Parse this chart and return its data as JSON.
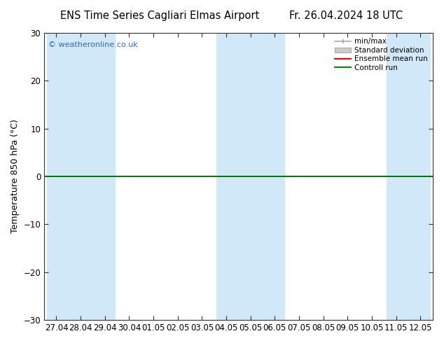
{
  "title_left": "ENS Time Series Cagliari Elmas Airport",
  "title_right": "Fr. 26.04.2024 18 UTC",
  "ylabel": "Temperature 850 hPa (°C)",
  "watermark": "© weatheronline.co.uk",
  "ylim": [
    -30,
    30
  ],
  "yticks": [
    -30,
    -20,
    -10,
    0,
    10,
    20,
    30
  ],
  "xtick_labels": [
    "27.04",
    "28.04",
    "29.04",
    "30.04",
    "01.05",
    "02.05",
    "03.05",
    "04.05",
    "05.05",
    "06.05",
    "07.05",
    "08.05",
    "09.05",
    "10.05",
    "11.05",
    "12.05"
  ],
  "background_color": "#ffffff",
  "plot_bg_color": "#ffffff",
  "shaded_band_color": "#d0e8f8",
  "shaded_indices": [
    0,
    1,
    2,
    7,
    8,
    9,
    14,
    15
  ],
  "shaded_band_halfwidth": 0.4,
  "legend_items": [
    "min/max",
    "Standard deviation",
    "Ensemble mean run",
    "Controll run"
  ],
  "minmax_color": "#aaaaaa",
  "stddev_color": "#cccccc",
  "ensemble_color": "#ff0000",
  "control_color": "#008800",
  "zero_line_color": "#000000",
  "green_line_color": "#008800",
  "title_fontsize": 10.5,
  "axis_fontsize": 9,
  "tick_fontsize": 8.5,
  "watermark_color": "#3366cc"
}
